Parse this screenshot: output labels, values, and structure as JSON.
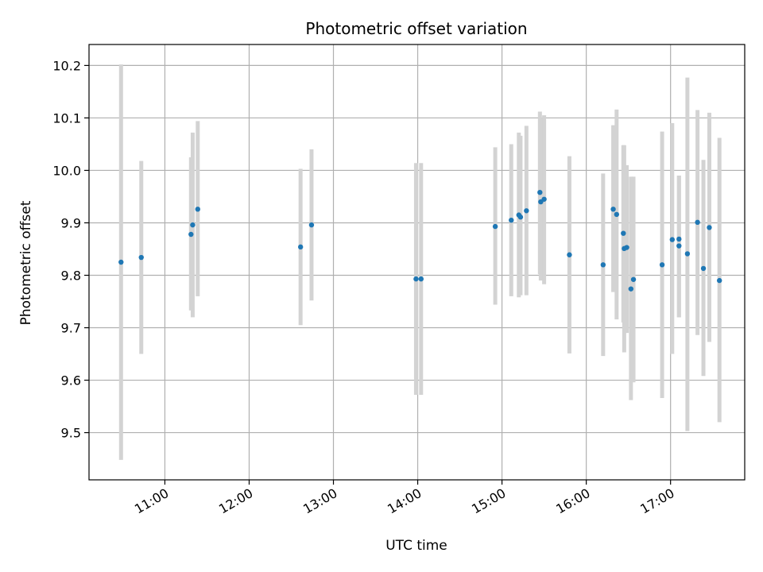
{
  "chart_data": {
    "type": "scatter",
    "title": "Photometric offset variation",
    "xlabel": "UTC time",
    "ylabel": "Photometric offset",
    "xlim": [
      10.1,
      17.88
    ],
    "ylim": [
      9.41,
      10.24
    ],
    "x_ticks": [
      11,
      12,
      13,
      14,
      15,
      16,
      17
    ],
    "x_tick_labels": [
      "11:00",
      "12:00",
      "13:00",
      "14:00",
      "15:00",
      "16:00",
      "17:00"
    ],
    "y_ticks": [
      9.5,
      9.6,
      9.7,
      9.8,
      9.9,
      10.0,
      10.1,
      10.2
    ],
    "y_tick_labels": [
      "9.5",
      "9.6",
      "9.7",
      "9.8",
      "9.9",
      "10.0",
      "10.1",
      "10.2"
    ],
    "grid": true,
    "colors": {
      "point": "#1f77b4",
      "errorbar": "#d3d3d3",
      "grid": "#b0b0b0",
      "axis": "#000000"
    },
    "points": [
      {
        "x": 10.48,
        "y": 9.825,
        "err_low": 9.448,
        "err_high": 10.202
      },
      {
        "x": 10.72,
        "y": 9.834,
        "err_low": 9.65,
        "err_high": 10.018
      },
      {
        "x": 11.31,
        "y": 9.878,
        "err_low": 9.733,
        "err_high": 10.025
      },
      {
        "x": 11.33,
        "y": 9.896,
        "err_low": 9.72,
        "err_high": 10.072
      },
      {
        "x": 11.39,
        "y": 9.926,
        "err_low": 9.76,
        "err_high": 10.094
      },
      {
        "x": 12.61,
        "y": 9.854,
        "err_low": 9.705,
        "err_high": 10.003
      },
      {
        "x": 12.74,
        "y": 9.896,
        "err_low": 9.752,
        "err_high": 10.04
      },
      {
        "x": 13.98,
        "y": 9.793,
        "err_low": 9.572,
        "err_high": 10.014
      },
      {
        "x": 14.04,
        "y": 9.793,
        "err_low": 9.572,
        "err_high": 10.014
      },
      {
        "x": 14.92,
        "y": 9.893,
        "err_low": 9.744,
        "err_high": 10.044
      },
      {
        "x": 15.11,
        "y": 9.905,
        "err_low": 9.76,
        "err_high": 10.05
      },
      {
        "x": 15.2,
        "y": 9.915,
        "err_low": 9.758,
        "err_high": 10.072
      },
      {
        "x": 15.22,
        "y": 9.911,
        "err_low": 9.762,
        "err_high": 10.066
      },
      {
        "x": 15.29,
        "y": 9.923,
        "err_low": 9.762,
        "err_high": 10.085
      },
      {
        "x": 15.45,
        "y": 9.958,
        "err_low": 9.802,
        "err_high": 10.112
      },
      {
        "x": 15.46,
        "y": 9.94,
        "err_low": 9.79,
        "err_high": 10.1
      },
      {
        "x": 15.5,
        "y": 9.945,
        "err_low": 9.783,
        "err_high": 10.105
      },
      {
        "x": 15.8,
        "y": 9.839,
        "err_low": 9.651,
        "err_high": 10.027
      },
      {
        "x": 16.2,
        "y": 9.82,
        "err_low": 9.646,
        "err_high": 9.994
      },
      {
        "x": 16.32,
        "y": 9.926,
        "err_low": 9.768,
        "err_high": 10.086
      },
      {
        "x": 16.36,
        "y": 9.916,
        "err_low": 9.716,
        "err_high": 10.116
      },
      {
        "x": 16.44,
        "y": 9.88,
        "err_low": 9.71,
        "err_high": 10.048
      },
      {
        "x": 16.45,
        "y": 9.851,
        "err_low": 9.653,
        "err_high": 10.048
      },
      {
        "x": 16.48,
        "y": 9.853,
        "err_low": 9.69,
        "err_high": 10.01
      },
      {
        "x": 16.53,
        "y": 9.774,
        "err_low": 9.562,
        "err_high": 9.988
      },
      {
        "x": 16.56,
        "y": 9.792,
        "err_low": 9.596,
        "err_high": 9.988
      },
      {
        "x": 16.9,
        "y": 9.82,
        "err_low": 9.566,
        "err_high": 10.074
      },
      {
        "x": 17.02,
        "y": 9.868,
        "err_low": 9.65,
        "err_high": 10.09
      },
      {
        "x": 17.1,
        "y": 9.856,
        "err_low": 9.72,
        "err_high": 9.99
      },
      {
        "x": 17.1,
        "y": 9.869,
        "err_low": 9.72,
        "err_high": 9.99
      },
      {
        "x": 17.2,
        "y": 9.841,
        "err_low": 9.503,
        "err_high": 10.177
      },
      {
        "x": 17.32,
        "y": 9.901,
        "err_low": 9.686,
        "err_high": 10.115
      },
      {
        "x": 17.39,
        "y": 9.813,
        "err_low": 9.608,
        "err_high": 10.02
      },
      {
        "x": 17.46,
        "y": 9.891,
        "err_low": 9.673,
        "err_high": 10.11
      },
      {
        "x": 17.58,
        "y": 9.79,
        "err_low": 9.52,
        "err_high": 10.062
      }
    ]
  }
}
